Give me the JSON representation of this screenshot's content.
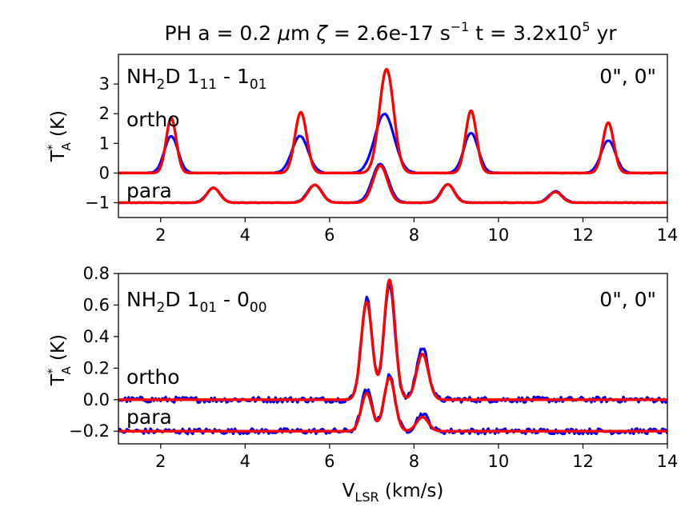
{
  "suptitle": {
    "prefix": "PH  a = 0.2 ",
    "mu": "μ",
    "m_part": "m  ",
    "zeta": "ζ",
    "zeta_val": " = 2.6e-17 s",
    "zeta_exp": "−1",
    "t_part": "  t = 3.2x10",
    "t_exp": "5",
    "t_unit": " yr"
  },
  "ylabel": {
    "main": "T",
    "sup": "*",
    "sub": "A",
    "unit": " (K)"
  },
  "xlabel": {
    "main": "V",
    "sub": "LSR",
    "unit": " (km/s)"
  },
  "colors": {
    "observed": "#0000ff",
    "model": "#ff0000"
  },
  "chart_data": [
    {
      "type": "line",
      "title": "NH2D 1_11 - 1_01",
      "transition": {
        "species": "NH",
        "sub2": "2",
        "d": "D 1",
        "upper": "11",
        "sep": " - 1",
        "lower": "01"
      },
      "position": "0\", 0\"",
      "xlabel": "",
      "ylabel": "T*_A (K)",
      "xlim": [
        1,
        14
      ],
      "ylim": [
        -1.5,
        4.0
      ],
      "xticks": [
        "2",
        "4",
        "6",
        "8",
        "10",
        "12",
        "14"
      ],
      "yticks": [
        "−1",
        "0",
        "1",
        "2",
        "3"
      ],
      "ytick_values": [
        -1,
        0,
        1,
        2,
        3
      ],
      "components": [
        {
          "label": "ortho",
          "baseline": 0.0,
          "observed_peaks": [
            [
              2.25,
              1.25,
              0.16
            ],
            [
              5.3,
              1.25,
              0.19
            ],
            [
              7.3,
              2.0,
              0.23
            ],
            [
              9.35,
              1.35,
              0.17
            ],
            [
              12.6,
              1.1,
              0.17
            ]
          ],
          "model_peaks": [
            [
              2.25,
              1.85,
              0.12
            ],
            [
              5.32,
              2.05,
              0.14
            ],
            [
              7.35,
              3.5,
              0.17
            ],
            [
              9.35,
              2.1,
              0.13
            ],
            [
              12.6,
              1.7,
              0.13
            ]
          ]
        },
        {
          "label": "para",
          "baseline": -1.0,
          "observed_peaks": [
            [
              3.25,
              0.5,
              0.16
            ],
            [
              5.65,
              0.6,
              0.17
            ],
            [
              7.2,
              1.3,
              0.19
            ],
            [
              8.8,
              0.62,
              0.16
            ],
            [
              11.35,
              0.38,
              0.16
            ]
          ],
          "model_peaks": [
            [
              3.25,
              0.5,
              0.15
            ],
            [
              5.65,
              0.6,
              0.16
            ],
            [
              7.2,
              1.25,
              0.17
            ],
            [
              8.8,
              0.62,
              0.15
            ],
            [
              11.35,
              0.36,
              0.15
            ]
          ]
        }
      ],
      "series": [
        {
          "name": "ortho observed",
          "color": "#0000ff"
        },
        {
          "name": "ortho model",
          "color": "#ff0000"
        },
        {
          "name": "para observed",
          "color": "#0000ff"
        },
        {
          "name": "para model",
          "color": "#ff0000"
        }
      ],
      "noise": 0.01
    },
    {
      "type": "line",
      "title": "NH2D 1_01 - 0_00",
      "transition": {
        "species": "NH",
        "sub2": "2",
        "d": "D 1",
        "upper": "01",
        "sep": " - 0",
        "lower": "00"
      },
      "position": "0\", 0\"",
      "xlabel": "V_LSR (km/s)",
      "ylabel": "T*_A (K)",
      "xlim": [
        1,
        14
      ],
      "ylim": [
        -0.28,
        0.8
      ],
      "xticks": [
        "2",
        "4",
        "6",
        "8",
        "10",
        "12",
        "14"
      ],
      "yticks": [
        "−0.2",
        "0.0",
        "0.2",
        "0.4",
        "0.6",
        "0.8"
      ],
      "ytick_values": [
        -0.2,
        0.0,
        0.2,
        0.4,
        0.6,
        0.8
      ],
      "components": [
        {
          "label": "ortho",
          "baseline": 0.0,
          "observed_peaks": [
            [
              6.88,
              0.64,
              0.13
            ],
            [
              7.42,
              0.73,
              0.13
            ],
            [
              8.2,
              0.33,
              0.14
            ]
          ],
          "model_peaks": [
            [
              6.88,
              0.62,
              0.13
            ],
            [
              7.42,
              0.76,
              0.13
            ],
            [
              8.2,
              0.29,
              0.14
            ]
          ]
        },
        {
          "label": "para",
          "baseline": -0.2,
          "observed_peaks": [
            [
              6.88,
              0.26,
              0.13
            ],
            [
              7.42,
              0.35,
              0.13
            ],
            [
              8.2,
              0.11,
              0.14
            ]
          ],
          "model_peaks": [
            [
              6.88,
              0.24,
              0.13
            ],
            [
              7.42,
              0.34,
              0.13
            ],
            [
              8.2,
              0.09,
              0.14
            ]
          ]
        }
      ],
      "series": [
        {
          "name": "ortho observed",
          "color": "#0000ff"
        },
        {
          "name": "ortho model",
          "color": "#ff0000"
        },
        {
          "name": "para observed",
          "color": "#0000ff"
        },
        {
          "name": "para model",
          "color": "#ff0000"
        }
      ],
      "noise": 0.018
    }
  ]
}
